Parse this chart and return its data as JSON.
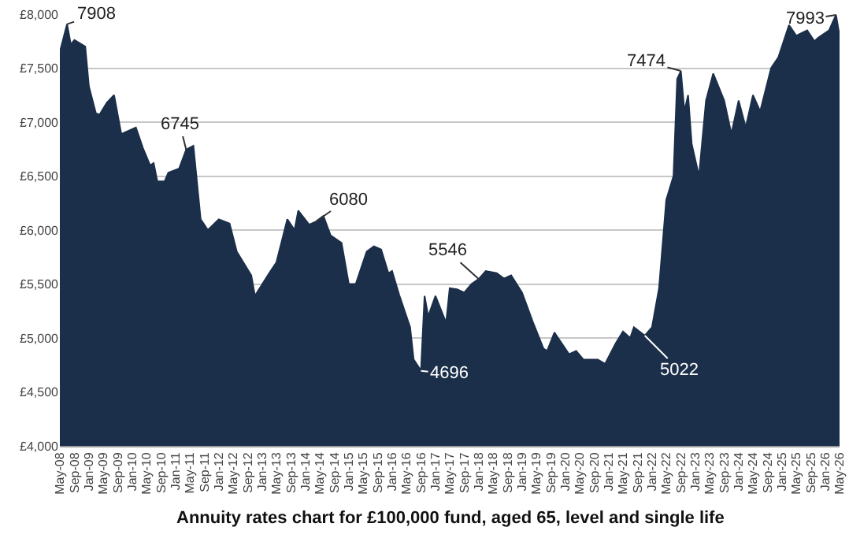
{
  "chart_data": {
    "type": "area",
    "title": "Annuity rates chart for £100,000 fund, aged 65, level and single life",
    "x": [
      "2008-05",
      "2008-07",
      "2008-08",
      "2008-09",
      "2008-12",
      "2009-01",
      "2009-03",
      "2009-04",
      "2009-06",
      "2009-08",
      "2009-10",
      "2010-02",
      "2010-04",
      "2010-06",
      "2010-07",
      "2010-08",
      "2010-10",
      "2010-11",
      "2011-02",
      "2011-04",
      "2011-06",
      "2011-08",
      "2011-10",
      "2012-01",
      "2012-04",
      "2012-06",
      "2012-10",
      "2012-11",
      "2013-03",
      "2013-05",
      "2013-08",
      "2013-10",
      "2013-11",
      "2014-02",
      "2014-04",
      "2014-06",
      "2014-08",
      "2014-11",
      "2015-01",
      "2015-03",
      "2015-06",
      "2015-08",
      "2015-10",
      "2015-12",
      "2016-01",
      "2016-03",
      "2016-06",
      "2016-07",
      "2016-09",
      "2016-10",
      "2016-11",
      "2017-01",
      "2017-04",
      "2017-05",
      "2017-07",
      "2017-09",
      "2017-11",
      "2018-01",
      "2018-03",
      "2018-06",
      "2018-08",
      "2018-10",
      "2019-01",
      "2019-04",
      "2019-07",
      "2019-08",
      "2019-10",
      "2019-11",
      "2020-02",
      "2020-04",
      "2020-06",
      "2020-10",
      "2020-12",
      "2021-03",
      "2021-05",
      "2021-07",
      "2021-08",
      "2021-11",
      "2022-01",
      "2022-03",
      "2022-05",
      "2022-07",
      "2022-08",
      "2022-09",
      "2022-10",
      "2022-11",
      "2022-12",
      "2023-02",
      "2023-04",
      "2023-06",
      "2023-09",
      "2023-11",
      "2024-01",
      "2024-03",
      "2024-05",
      "2024-07",
      "2024-10",
      "2024-12",
      "2025-03",
      "2025-05",
      "2025-08",
      "2025-10",
      "2025-11",
      "2026-02",
      "2026-04",
      "2026-05"
    ],
    "series": [
      {
        "color": "#1c2f4a",
        "values": [
          7650,
          7908,
          7720,
          7760,
          7700,
          7330,
          7080,
          7070,
          7180,
          7250,
          6890,
          6950,
          6760,
          6600,
          6620,
          6450,
          6450,
          6530,
          6570,
          6745,
          6780,
          6100,
          6000,
          6100,
          6060,
          5800,
          5580,
          5390,
          5600,
          5700,
          6100,
          6000,
          6180,
          6050,
          6080,
          6130,
          5950,
          5880,
          5500,
          5500,
          5800,
          5850,
          5820,
          5600,
          5620,
          5400,
          5100,
          4800,
          4696,
          5390,
          5200,
          5390,
          5140,
          5460,
          5450,
          5420,
          5500,
          5546,
          5620,
          5600,
          5550,
          5580,
          5420,
          5150,
          4900,
          4880,
          5050,
          5000,
          4850,
          4880,
          4800,
          4800,
          4760,
          4950,
          5060,
          5000,
          5100,
          5022,
          5100,
          5460,
          6280,
          6500,
          7400,
          7474,
          7100,
          7250,
          6800,
          6500,
          7200,
          7450,
          7200,
          6890,
          7200,
          6950,
          7250,
          7100,
          7500,
          7600,
          7900,
          7800,
          7850,
          7750,
          7780,
          7850,
          7993,
          7800
        ]
      }
    ],
    "annotations": [
      {
        "text": "7908",
        "x": "2008-07",
        "y": 7908
      },
      {
        "text": "6745",
        "x": "2011-04",
        "y": 6745
      },
      {
        "text": "6080",
        "x": "2014-04",
        "y": 6080
      },
      {
        "text": "4696",
        "x": "2016-09",
        "y": 4696
      },
      {
        "text": "5546",
        "x": "2018-01",
        "y": 5546
      },
      {
        "text": "5022",
        "x": "2021-11",
        "y": 5022
      },
      {
        "text": "7474",
        "x": "2022-09",
        "y": 7474
      },
      {
        "text": "7993",
        "x": "2026-04",
        "y": 7993
      }
    ],
    "xlim": [
      "2008-05",
      "2026-05"
    ],
    "xticks": [
      {
        "value": "2008-05",
        "label": "May-08"
      },
      {
        "value": "2008-09",
        "label": "Sep-08"
      },
      {
        "value": "2009-01",
        "label": "Jan-09"
      },
      {
        "value": "2009-05",
        "label": "May-09"
      },
      {
        "value": "2009-09",
        "label": "Sep-09"
      },
      {
        "value": "2010-01",
        "label": "Jan-10"
      },
      {
        "value": "2010-05",
        "label": "May-10"
      },
      {
        "value": "2010-09",
        "label": "Sep-10"
      },
      {
        "value": "2011-01",
        "label": "Jan-11"
      },
      {
        "value": "2011-05",
        "label": "May-11"
      },
      {
        "value": "2011-09",
        "label": "Sep-11"
      },
      {
        "value": "2012-01",
        "label": "Jan-12"
      },
      {
        "value": "2012-05",
        "label": "May-12"
      },
      {
        "value": "2012-09",
        "label": "Sep-12"
      },
      {
        "value": "2013-01",
        "label": "Jan-13"
      },
      {
        "value": "2013-05",
        "label": "May-13"
      },
      {
        "value": "2013-09",
        "label": "Sep-13"
      },
      {
        "value": "2014-01",
        "label": "Jan-14"
      },
      {
        "value": "2014-05",
        "label": "May-14"
      },
      {
        "value": "2014-09",
        "label": "Sep-14"
      },
      {
        "value": "2015-01",
        "label": "Jan-15"
      },
      {
        "value": "2015-05",
        "label": "May-15"
      },
      {
        "value": "2015-09",
        "label": "Sep-15"
      },
      {
        "value": "2016-01",
        "label": "Jan-16"
      },
      {
        "value": "2016-05",
        "label": "May-16"
      },
      {
        "value": "2016-09",
        "label": "Sep-16"
      },
      {
        "value": "2017-01",
        "label": "Jan-17"
      },
      {
        "value": "2017-05",
        "label": "May-17"
      },
      {
        "value": "2017-09",
        "label": "Sep-17"
      },
      {
        "value": "2018-01",
        "label": "Jan-18"
      },
      {
        "value": "2018-05",
        "label": "May-18"
      },
      {
        "value": "2018-09",
        "label": "Sep-18"
      },
      {
        "value": "2019-01",
        "label": "Jan-19"
      },
      {
        "value": "2019-05",
        "label": "May-19"
      },
      {
        "value": "2019-09",
        "label": "Sep-19"
      },
      {
        "value": "2020-01",
        "label": "Jan-20"
      },
      {
        "value": "2020-05",
        "label": "May-20"
      },
      {
        "value": "2020-09",
        "label": "Sep-20"
      },
      {
        "value": "2021-01",
        "label": "Jan-21"
      },
      {
        "value": "2021-05",
        "label": "May-21"
      },
      {
        "value": "2021-09",
        "label": "Sep-21"
      },
      {
        "value": "2022-01",
        "label": "Jan-22"
      },
      {
        "value": "2022-05",
        "label": "May-22"
      },
      {
        "value": "2022-09",
        "label": "Sep-22"
      },
      {
        "value": "2023-01",
        "label": "Jan-23"
      },
      {
        "value": "2023-05",
        "label": "May-23"
      },
      {
        "value": "2023-09",
        "label": "Sep-23"
      },
      {
        "value": "2024-01",
        "label": "Jan-24"
      },
      {
        "value": "2024-05",
        "label": "May-24"
      },
      {
        "value": "2024-09",
        "label": "Sep-24"
      },
      {
        "value": "2025-01",
        "label": "Jan-25"
      },
      {
        "value": "2025-05",
        "label": "May-25"
      },
      {
        "value": "2025-09",
        "label": "Sep-25"
      },
      {
        "value": "2026-01",
        "label": "Jan-26"
      },
      {
        "value": "2026-05",
        "label": "May-26"
      }
    ],
    "ylim": [
      4000,
      8000
    ],
    "yticks": [
      {
        "value": 4000,
        "label": "£4,000"
      },
      {
        "value": 4500,
        "label": "£4,500"
      },
      {
        "value": 5000,
        "label": "£5,000"
      },
      {
        "value": 5500,
        "label": "£5,500"
      },
      {
        "value": 6000,
        "label": "£6,000"
      },
      {
        "value": 6500,
        "label": "£6,500"
      },
      {
        "value": 7000,
        "label": "£7,000"
      },
      {
        "value": 7500,
        "label": "£7,500"
      },
      {
        "value": 8000,
        "label": "£8,000"
      }
    ],
    "grid": "y"
  }
}
